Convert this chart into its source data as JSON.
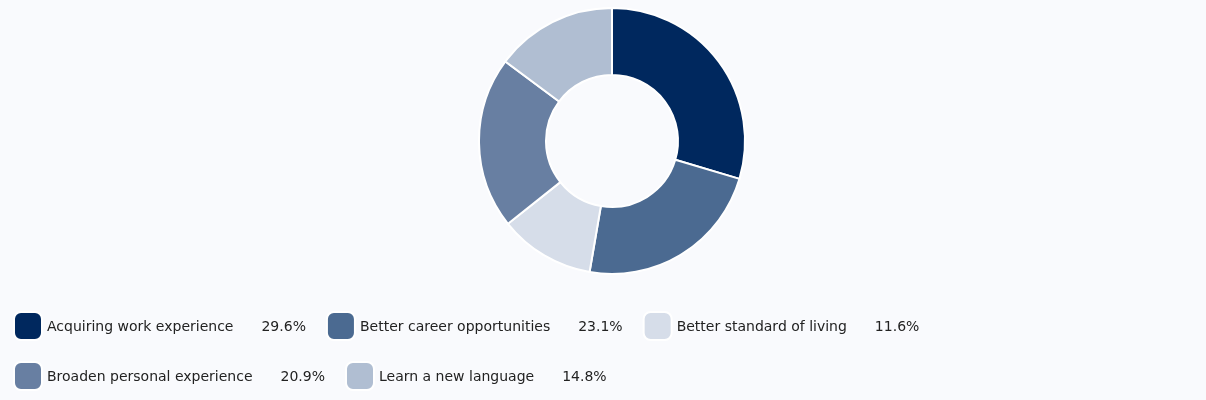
{
  "chart_data": {
    "type": "donut",
    "categories": [
      "Acquiring work experience",
      "Better career opportunities",
      "Better standard of living",
      "Broaden personal experience",
      "Learn a new language"
    ],
    "values": [
      29.6,
      23.1,
      11.6,
      20.9,
      14.8
    ],
    "value_labels": [
      "29.6%",
      "23.1%",
      "11.6%",
      "20.9%",
      "14.8%"
    ],
    "colors": [
      "#00285e",
      "#4b6a91",
      "#d6dde9",
      "#687fa2",
      "#b0bed2"
    ],
    "legend": "bottom"
  }
}
